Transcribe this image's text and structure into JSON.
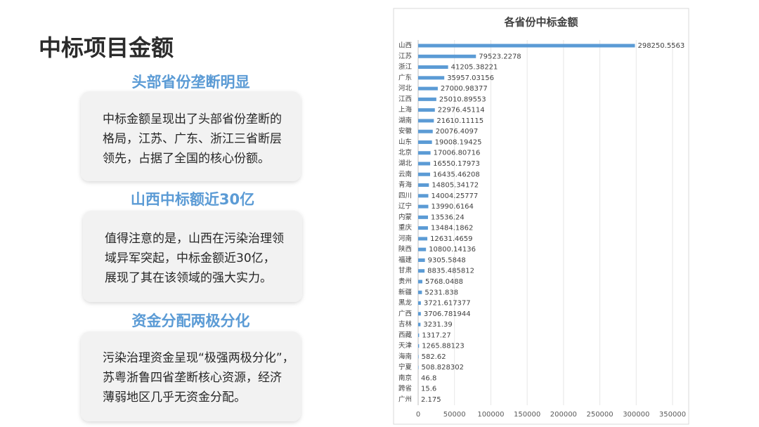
{
  "page": {
    "title": "中标项目金额",
    "sections": [
      {
        "heading": "头部省份垄断明显",
        "lines": [
          "中标金额呈现出了头部省份垄断的",
          "格局，江苏、广东、浙江三省断层",
          "领先，占据了全国的核心份额。"
        ]
      },
      {
        "heading": "山西中标额近30亿",
        "lines": [
          "值得注意的是，山西在污染治理领",
          "域异军突起，中标金额近30亿，",
          "展现了其在该领域的强大实力。"
        ]
      },
      {
        "heading": "资金分配两极分化",
        "lines": [
          "污染治理资金呈现“极强两极分化”，",
          "苏粤浙鲁四省垄断核心资源，经济",
          "薄弱地区几乎无资金分配。"
        ]
      }
    ]
  },
  "chart_data": {
    "type": "bar",
    "orientation": "horizontal",
    "title": "各省份中标金额",
    "categories": [
      "山西",
      "江苏",
      "浙江",
      "广东",
      "河北",
      "江西",
      "上海",
      "湖南",
      "安徽",
      "山东",
      "北京",
      "湖北",
      "云南",
      "青海",
      "四川",
      "辽宁",
      "内蒙",
      "重庆",
      "河南",
      "陕西",
      "福建",
      "甘肃",
      "贵州",
      "新疆",
      "黑龙",
      "广西",
      "吉林",
      "西藏",
      "天津",
      "海南",
      "宁夏",
      "南京",
      "跨省",
      "广州"
    ],
    "values": [
      298250.5563,
      79523.2278,
      41205.38221,
      35957.03156,
      27000.98377,
      25010.89553,
      22976.45114,
      21610.11115,
      20076.4097,
      19008.19425,
      17006.80716,
      16550.17973,
      16435.46208,
      14805.34172,
      14004.25777,
      13990.6164,
      13536.24,
      13484.1862,
      12631.4659,
      10800.14136,
      9305.5848,
      8835.485812,
      5768.0488,
      5231.838,
      3721.617377,
      3706.781944,
      3231.39,
      1317.27,
      1265.88123,
      582.62,
      508.828302,
      46.8,
      15.6,
      2.175
    ],
    "color": "#5b9bd5",
    "xlim": [
      0,
      350000
    ],
    "xticks": [
      0,
      50000,
      100000,
      150000,
      200000,
      250000,
      300000,
      350000
    ],
    "grid": true
  }
}
